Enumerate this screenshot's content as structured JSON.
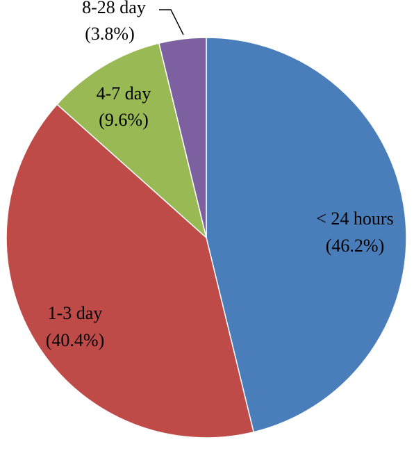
{
  "chart_data": {
    "type": "pie",
    "title": "",
    "slices": [
      {
        "label": "< 24 hours",
        "value": 46.2,
        "percent_label": "(46.2%)",
        "color": "#4a7ebb"
      },
      {
        "label": "1-3 day",
        "value": 40.4,
        "percent_label": "(40.4%)",
        "color": "#be4b48"
      },
      {
        "label": "4-7 day",
        "value": 9.6,
        "percent_label": "(9.6%)",
        "color": "#98b954"
      },
      {
        "label": "8-28 day",
        "value": 3.8,
        "percent_label": "(3.8%)",
        "color": "#7d60a0"
      }
    ],
    "start": "12 o'clock",
    "direction": "clockwise",
    "legend": "none",
    "labels": "on-slices"
  }
}
